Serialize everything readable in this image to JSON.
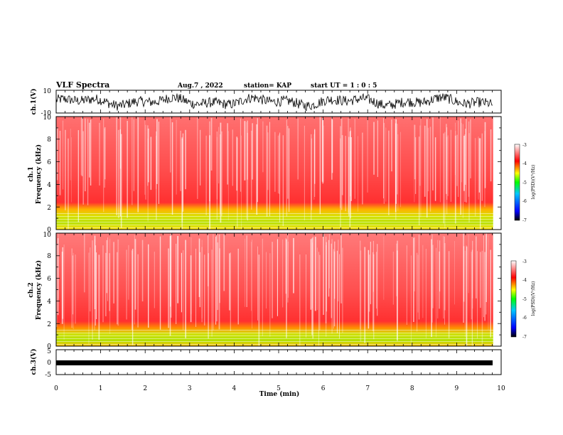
{
  "header": {
    "title": "VLF Spectra",
    "date": "Aug.7 , 2022",
    "station": "station= KAP",
    "start": "start UT = 1 : 0 : 5"
  },
  "colors": {
    "colormap": [
      "#000000",
      "#0000ff",
      "#00c8ff",
      "#00ff00",
      "#ffff00",
      "#ff0000",
      "#ffffff"
    ],
    "spectrogram_bg": "#ff5050",
    "waveform": "#000000"
  },
  "chart_data": [
    {
      "type": "line",
      "name": "ch1-waveform",
      "ylabel": "ch.1(V)",
      "ylim": [
        -10,
        10
      ],
      "yticks": [
        "10",
        "-10"
      ],
      "xlim": [
        0,
        10
      ],
      "description_values": "noisy oscillating waveform, mostly between -6 and 6 V"
    },
    {
      "type": "heatmap",
      "name": "ch1-spectrogram",
      "ylabel": "ch.1\nFrequency (kHz)",
      "ylim": [
        0,
        10
      ],
      "yticks": [
        "0",
        "2",
        "4",
        "6",
        "8",
        "10"
      ],
      "xlim": [
        0,
        10
      ],
      "colorbar": {
        "label": "log(PSD)(V²/Hz)",
        "range": [
          -7,
          -3
        ],
        "ticks": [
          "-3",
          "-4",
          "-5",
          "-6",
          "-7"
        ]
      }
    },
    {
      "type": "heatmap",
      "name": "ch2-spectrogram",
      "ylabel": "ch.2\nFrequency (kHz)",
      "ylim": [
        0,
        10
      ],
      "yticks": [
        "0",
        "2",
        "4",
        "6",
        "8",
        "10"
      ],
      "xlim": [
        0,
        10
      ],
      "colorbar": {
        "label": "log(PSD)(V²/Hz)",
        "range": [
          -7,
          -3
        ],
        "ticks": [
          "-3",
          "-4",
          "-5",
          "-6",
          "-7"
        ]
      }
    },
    {
      "type": "line",
      "name": "ch3-waveform",
      "ylabel": "ch.3(V)",
      "ylim": [
        -5,
        5
      ],
      "yticks": [
        "5",
        "0",
        "-5"
      ],
      "xlim": [
        0,
        10
      ],
      "xlabel": "Time (min)",
      "xticks": [
        "0",
        "1",
        "2",
        "3",
        "4",
        "5",
        "6",
        "7",
        "8",
        "9",
        "10"
      ]
    }
  ]
}
